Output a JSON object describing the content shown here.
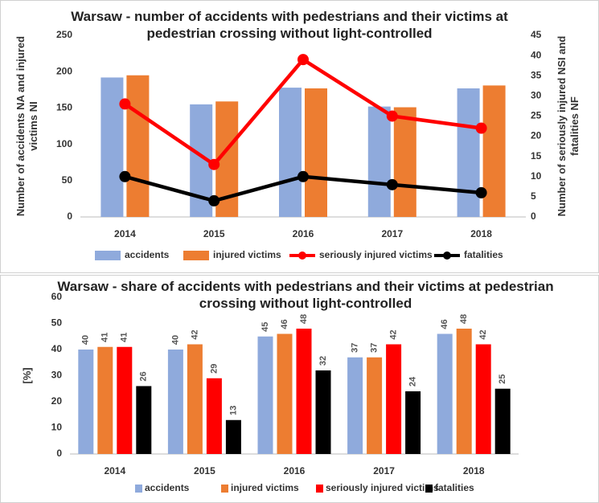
{
  "chart_data": [
    {
      "type": "bar",
      "title": "Warsaw - number of accidents with pedestrians and their victims at pedestrian crossing without light-controlled",
      "y_label": "Number of accidents NA and injured victims NI",
      "y2_label": "Number of seriously injured NSI and fatalities NF",
      "categories": [
        "2014",
        "2015",
        "2016",
        "2017",
        "2018"
      ],
      "series": [
        {
          "name": "accidents",
          "type": "bar",
          "color": "#8faadc",
          "values": [
            192,
            155,
            178,
            152,
            177
          ]
        },
        {
          "name": "injured victims",
          "type": "bar",
          "color": "#ed7d31",
          "values": [
            195,
            159,
            177,
            151,
            181
          ]
        },
        {
          "name": "seriously injured victims",
          "type": "line",
          "axis": "y2",
          "color": "#ff0000",
          "values": [
            28,
            13,
            39,
            25,
            22
          ]
        },
        {
          "name": "fatalities",
          "type": "line",
          "axis": "y2",
          "color": "#000000",
          "values": [
            10,
            4,
            10,
            8,
            6
          ]
        }
      ],
      "ylim": [
        0,
        250
      ],
      "yticks": [
        0,
        50,
        100,
        150,
        200,
        250
      ],
      "y2lim": [
        0,
        45
      ],
      "y2ticks": [
        0,
        5,
        10,
        15,
        20,
        25,
        30,
        35,
        40,
        45
      ],
      "legend": "bottom"
    },
    {
      "type": "bar",
      "title": "Warsaw - share of accidents with pedestrians and their victims at pedestrian crossing without light-controlled",
      "y_label": "[%]",
      "categories": [
        "2014",
        "2015",
        "2016",
        "2017",
        "2018"
      ],
      "series": [
        {
          "name": "accidents",
          "color": "#8faadc",
          "values": [
            40,
            40,
            45,
            37,
            46
          ]
        },
        {
          "name": "injured victims",
          "color": "#ed7d31",
          "values": [
            41,
            42,
            46,
            37,
            48
          ]
        },
        {
          "name": "seriously injured victims",
          "color": "#ff0000",
          "values": [
            41,
            29,
            48,
            42,
            42
          ]
        },
        {
          "name": "fatalities",
          "color": "#000000",
          "values": [
            26,
            13,
            32,
            24,
            25
          ]
        }
      ],
      "ylim": [
        0,
        60
      ],
      "yticks": [
        0,
        10,
        20,
        30,
        40,
        50,
        60
      ],
      "value_labels_shown": true,
      "legend": "bottom"
    }
  ]
}
